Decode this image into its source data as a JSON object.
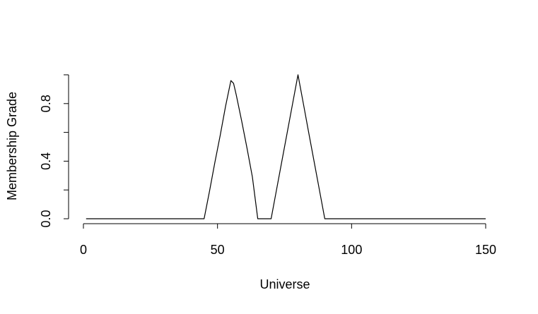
{
  "chart_data": {
    "type": "line",
    "title": "",
    "xlabel": "Universe",
    "ylabel": "Membership Grade",
    "xlim": [
      0,
      150
    ],
    "ylim": [
      0,
      1
    ],
    "x_ticks": [
      0,
      50,
      100,
      150
    ],
    "x_tick_labels": [
      "0",
      "50",
      "100",
      "150"
    ],
    "y_ticks": [
      0,
      0.2,
      0.4,
      0.6,
      0.8,
      1.0
    ],
    "y_tick_labels": [
      "0.0",
      "",
      "0.4",
      "",
      "0.8",
      ""
    ],
    "grid": false,
    "series": [
      {
        "x": [
          1,
          45,
          47,
          49,
          51,
          53,
          55,
          56,
          57,
          59,
          61,
          63,
          65,
          70,
          72,
          74,
          76,
          78,
          80,
          82,
          84,
          86,
          88,
          90,
          150
        ],
        "y": [
          0,
          0,
          0.19,
          0.39,
          0.58,
          0.78,
          0.96,
          0.94,
          0.86,
          0.68,
          0.49,
          0.29,
          0,
          0,
          0.2,
          0.4,
          0.6,
          0.8,
          1.0,
          0.8,
          0.6,
          0.4,
          0.2,
          0,
          0
        ],
        "color": "#000000"
      }
    ]
  }
}
